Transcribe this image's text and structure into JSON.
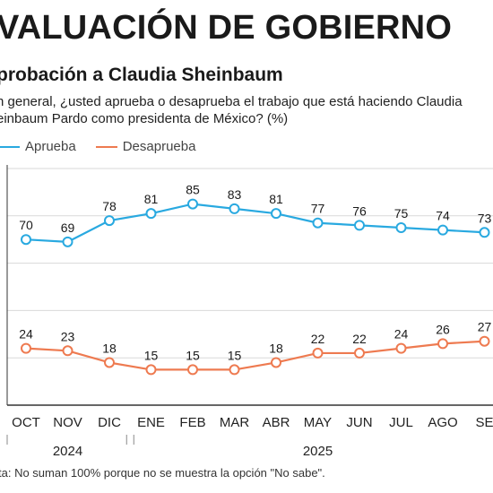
{
  "header": {
    "title": "VALUACIÓN DE GOBIERNO",
    "subtitle": "probación a Claudia Sheinbaum",
    "question": "n general, ¿usted aprueba o desaprueba el trabajo que está haciendo Claudia einbaum Pardo como presidenta de México? (%)"
  },
  "note": "ta: No suman 100% porque no se muestra la opción \"No sabe\".",
  "colors": {
    "aprueba": "#29a9e0",
    "desaprueba": "#ee7a50",
    "grid": "#d9d9d9",
    "axis": "#333333"
  },
  "chart_data": {
    "type": "line",
    "categories": [
      "OCT",
      "NOV",
      "DIC",
      "ENE",
      "FEB",
      "MAR",
      "ABR",
      "MAY",
      "JUN",
      "JUL",
      "AGO",
      "SEP"
    ],
    "category_labels": [
      "OCT",
      "NOV",
      "DIC",
      "ENE",
      "FEB",
      "MAR",
      "ABR",
      "MAY",
      "JUN",
      "JUL",
      "AGO",
      "SE"
    ],
    "years": [
      {
        "label": "2024",
        "from": 0,
        "to": 2
      },
      {
        "label": "2025",
        "from": 3,
        "to": 11
      }
    ],
    "series": [
      {
        "name": "Aprueba",
        "values": [
          70,
          69,
          78,
          81,
          85,
          83,
          81,
          77,
          76,
          75,
          74,
          73
        ],
        "labels": [
          "70",
          "69",
          "78",
          "81",
          "85",
          "83",
          "81",
          "77",
          "76",
          "75",
          "74",
          "73"
        ]
      },
      {
        "name": "Desaprueba",
        "values": [
          24,
          23,
          18,
          15,
          15,
          15,
          18,
          22,
          22,
          24,
          26,
          27
        ],
        "labels": [
          "24",
          "23",
          "18",
          "15",
          "15",
          "15",
          "18",
          "22",
          "22",
          "24",
          "26",
          "27"
        ]
      }
    ],
    "ylim": [
      0,
      100
    ],
    "grid": true,
    "legend": "top-left",
    "xlabel": "",
    "ylabel": ""
  }
}
